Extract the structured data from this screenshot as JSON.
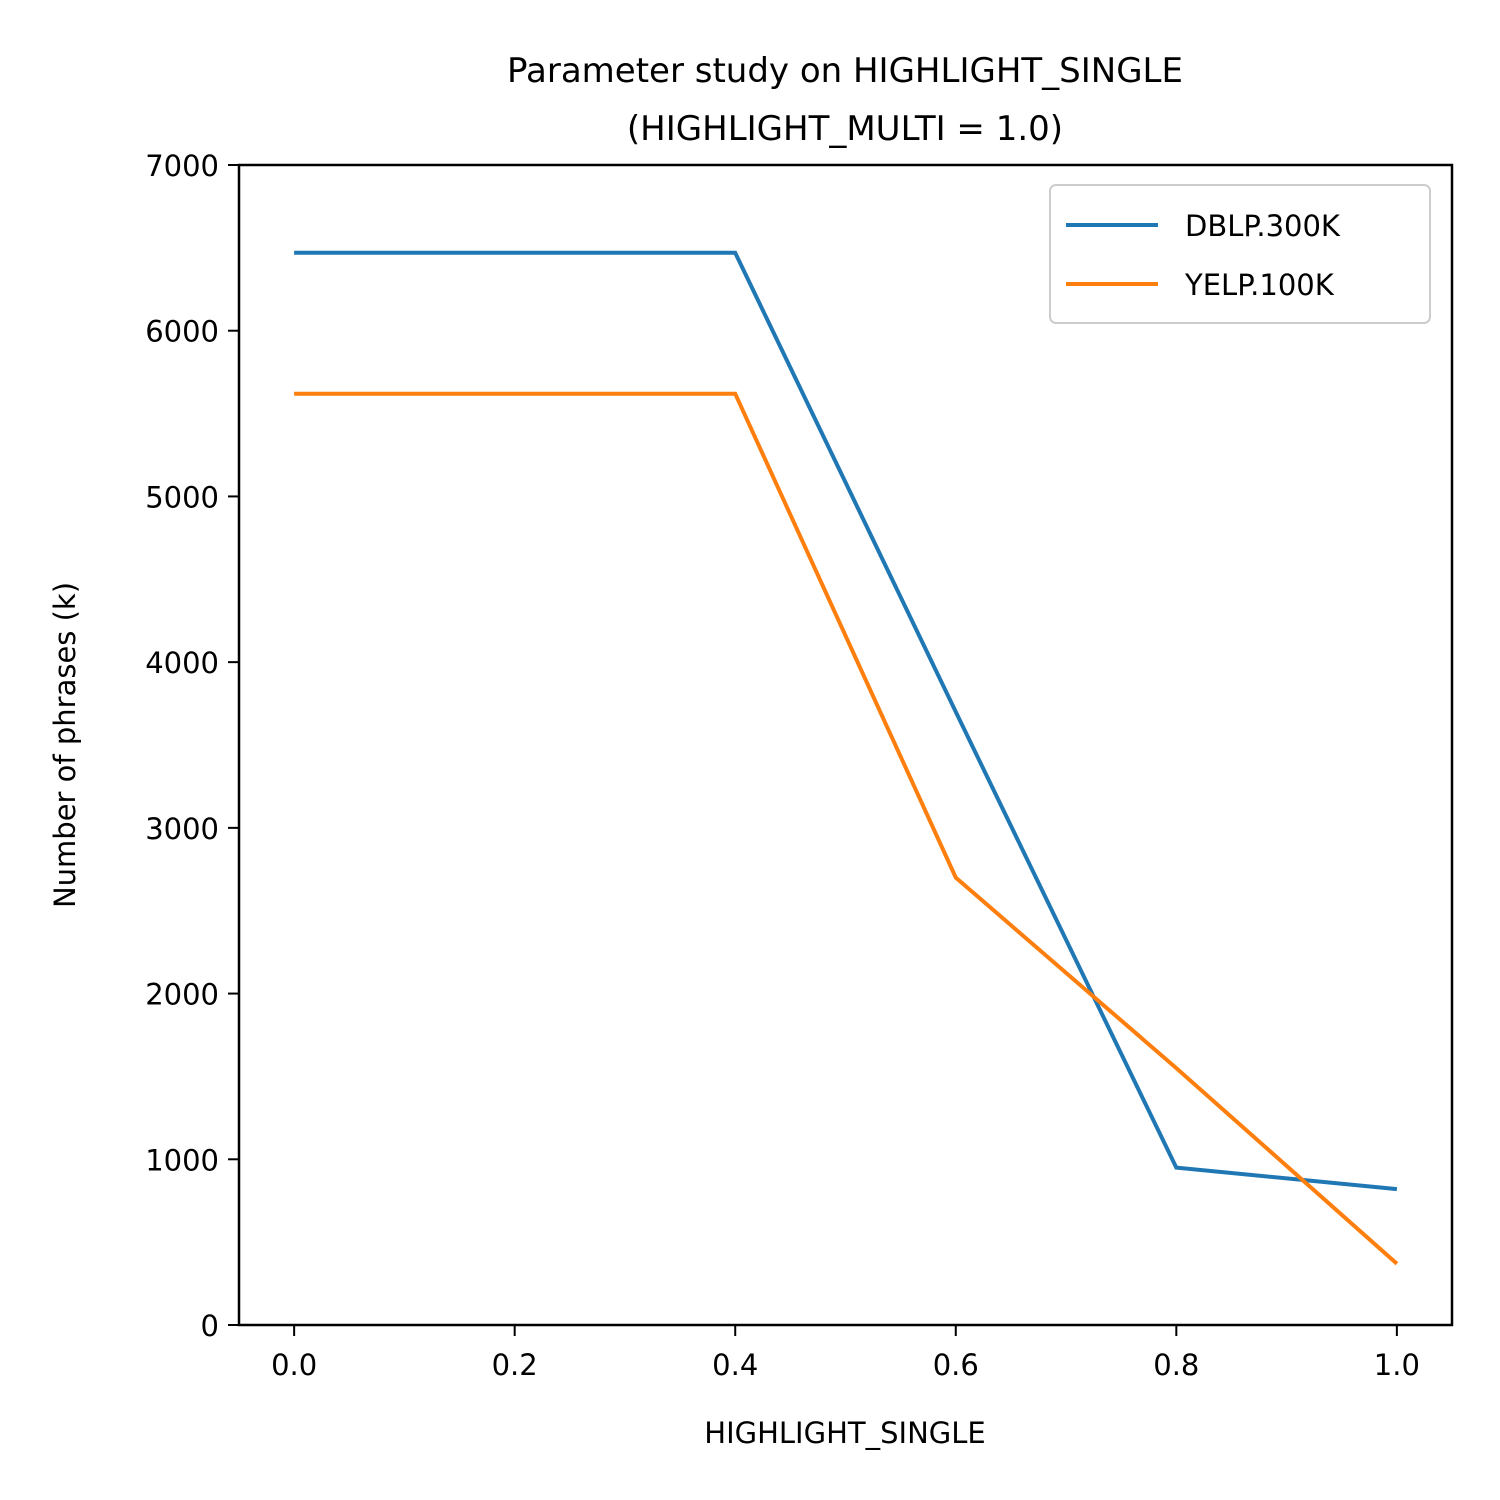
{
  "chart_data": {
    "type": "line",
    "title": "Parameter study on HIGHLIGHT_SINGLE",
    "subtitle": "(HIGHLIGHT_MULTI = 1.0)",
    "xlabel": "HIGHLIGHT_SINGLE",
    "ylabel": "Number of phrases (k)",
    "x": [
      0.0,
      0.4,
      0.6,
      0.8,
      1.0
    ],
    "xlim": [
      -0.05,
      1.05
    ],
    "ylim": [
      0,
      7000
    ],
    "xticks": [
      "0.0",
      "0.2",
      "0.4",
      "0.6",
      "0.8",
      "1.0"
    ],
    "yticks": [
      "0",
      "1000",
      "2000",
      "3000",
      "4000",
      "5000",
      "6000",
      "7000"
    ],
    "grid": false,
    "legend_position": "top-right",
    "series": [
      {
        "name": "DBLP.300K",
        "color": "#1f77b4",
        "values": [
          6470,
          6470,
          3700,
          950,
          820
        ]
      },
      {
        "name": "YELP.100K",
        "color": "#ff7f0e",
        "values": [
          5620,
          5620,
          2700,
          1550,
          370
        ]
      }
    ]
  }
}
